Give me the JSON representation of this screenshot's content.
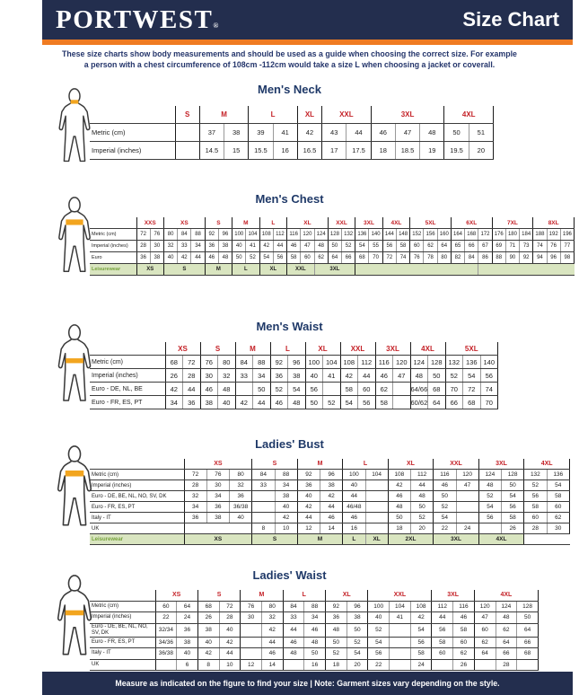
{
  "header": {
    "brand": "PORTWEST",
    "brand_reg": "®",
    "title": "Size Chart"
  },
  "intro": {
    "line1": "These size charts show body measurements and should be used as a guide when choosing the correct size. For example",
    "line2": "a person with a chest circumference of 108cm -112cm would take a size L when choosing a jacket or coverall."
  },
  "footer": {
    "text": "Measure as indicated on the figure to find your size  |  Note: Garment sizes vary depending on the style."
  },
  "colors": {
    "header_navy": "#232e4e",
    "accent_orange": "#ef7b22",
    "size_red": "#c42127",
    "title_navy": "#1f3968",
    "leisure_green_text": "#76a23d",
    "leisure_green_bg": "#d9e5c0",
    "figure_band_orange": "#f2a51f"
  },
  "sections": [
    {
      "id": "mens-neck",
      "title": "Men's Neck",
      "figure": "male",
      "figure_band": "neck",
      "sizes": [
        [
          "S",
          1
        ],
        [
          "M",
          2
        ],
        [
          "L",
          2
        ],
        [
          "XL",
          1
        ],
        [
          "XXL",
          2
        ],
        [
          "3XL",
          3
        ],
        [
          "4XL",
          2
        ]
      ],
      "rows": [
        {
          "label": "Metric (cm)",
          "cells": [
            "",
            "37",
            "38",
            "39",
            "41",
            "42",
            "43",
            "44",
            "46",
            "47",
            "48",
            "50",
            "51"
          ]
        },
        {
          "label": "Imperial (inches)",
          "cells": [
            "",
            "14.5",
            "15",
            "15.5",
            "16",
            "16.5",
            "17",
            "17.5",
            "18",
            "18.5",
            "19",
            "19.5",
            "20"
          ]
        }
      ],
      "leisure": null
    },
    {
      "id": "mens-chest",
      "title": "Men's Chest",
      "figure": "male",
      "figure_band": "chest",
      "sizes": [
        [
          "XXS",
          2
        ],
        [
          "XS",
          3
        ],
        [
          "S",
          2
        ],
        [
          "M",
          2
        ],
        [
          "L",
          2
        ],
        [
          "XL",
          3
        ],
        [
          "XXL",
          2
        ],
        [
          "3XL",
          2
        ],
        [
          "4XL",
          2
        ],
        [
          "5XL",
          3
        ],
        [
          "6XL",
          3
        ],
        [
          "7XL",
          3
        ],
        [
          "8XL",
          3
        ]
      ],
      "rows": [
        {
          "label": "Metric (cm)",
          "cells": [
            "72",
            "76",
            "80",
            "84",
            "88",
            "92",
            "96",
            "100",
            "104",
            "108",
            "112",
            "116",
            "120",
            "124",
            "128",
            "132",
            "136",
            "140",
            "144",
            "148",
            "152",
            "156",
            "160",
            "164",
            "168",
            "172",
            "176",
            "180",
            "184",
            "188",
            "192",
            "196"
          ]
        },
        {
          "label": "Imperial (inches)",
          "cells": [
            "28",
            "30",
            "32",
            "33",
            "34",
            "36",
            "38",
            "40",
            "41",
            "42",
            "44",
            "46",
            "47",
            "48",
            "50",
            "52",
            "54",
            "55",
            "56",
            "58",
            "60",
            "62",
            "64",
            "65",
            "66",
            "67",
            "69",
            "71",
            "73",
            "74",
            "76",
            "77"
          ]
        },
        {
          "label": "Euro",
          "cells": [
            "36",
            "38",
            "40",
            "42",
            "44",
            "46",
            "48",
            "50",
            "52",
            "54",
            "56",
            "58",
            "60",
            "62",
            "64",
            "66",
            "68",
            "70",
            "72",
            "74",
            "76",
            "78",
            "80",
            "82",
            "84",
            "86",
            "88",
            "90",
            "92",
            "94",
            "96",
            "98"
          ]
        }
      ],
      "leisure": {
        "label": "Leisurewear",
        "cells": [
          [
            "XS",
            2
          ],
          [
            "S",
            3
          ],
          [
            "M",
            2
          ],
          [
            "L",
            2
          ],
          [
            "XL",
            2
          ],
          [
            "XXL",
            2
          ],
          [
            "3XL",
            3
          ],
          [
            "",
            9
          ],
          [
            "",
            7
          ]
        ]
      }
    },
    {
      "id": "mens-waist",
      "title": "Men's Waist",
      "figure": "male",
      "figure_band": "waist",
      "sizes": [
        [
          "XS",
          2
        ],
        [
          "S",
          2
        ],
        [
          "M",
          2
        ],
        [
          "L",
          2
        ],
        [
          "XL",
          2
        ],
        [
          "XXL",
          2
        ],
        [
          "3XL",
          2
        ],
        [
          "4XL",
          2
        ],
        [
          "5XL",
          3
        ]
      ],
      "rows": [
        {
          "label": "Metric (cm)",
          "cells": [
            "68",
            "72",
            "76",
            "80",
            "84",
            "88",
            "92",
            "96",
            "100",
            "104",
            "108",
            "112",
            "116",
            "120",
            "124",
            "128",
            "132",
            "136",
            "140"
          ]
        },
        {
          "label": "Imperial (inches)",
          "cells": [
            "26",
            "28",
            "30",
            "32",
            "33",
            "34",
            "36",
            "38",
            "40",
            "41",
            "42",
            "44",
            "46",
            "47",
            "48",
            "50",
            "52",
            "54",
            "56"
          ]
        },
        {
          "label": "Euro - DE, NL, BE",
          "cells": [
            "42",
            "44",
            "46",
            "48",
            "",
            "50",
            "52",
            "54",
            "56",
            "",
            "58",
            "60",
            "62",
            "",
            "64/66",
            "68",
            "70",
            "72",
            "74"
          ]
        },
        {
          "label": "Euro - FR, ES, PT",
          "cells": [
            "34",
            "36",
            "38",
            "40",
            "42",
            "44",
            "46",
            "48",
            "50",
            "52",
            "54",
            "56",
            "58",
            "",
            "60/62",
            "64",
            "66",
            "68",
            "70"
          ]
        }
      ],
      "leisure": null
    },
    {
      "id": "ladies-bust",
      "title": "Ladies' Bust",
      "figure": "female",
      "figure_band": "bust",
      "sizes": [
        [
          "XS",
          3
        ],
        [
          "S",
          2
        ],
        [
          "M",
          2
        ],
        [
          "L",
          2
        ],
        [
          "XL",
          2
        ],
        [
          "XXL",
          2
        ],
        [
          "3XL",
          2
        ],
        [
          "4XL",
          2
        ]
      ],
      "rows": [
        {
          "label": "Metric (cm)",
          "cells": [
            "72",
            "76",
            "80",
            "84",
            "88",
            "92",
            "96",
            "100",
            "104",
            "108",
            "112",
            "116",
            "120",
            "124",
            "128",
            "132",
            "136"
          ]
        },
        {
          "label": "Imperial (inches)",
          "cells": [
            "28",
            "30",
            "32",
            "33",
            "34",
            "36",
            "38",
            "40",
            "",
            "42",
            "44",
            "46",
            "47",
            "48",
            "50",
            "52",
            "54"
          ]
        },
        {
          "label": "Euro - DE, BE, NL, NO, SV, DK",
          "cells": [
            "32",
            "34",
            "36",
            "",
            "38",
            "40",
            "42",
            "44",
            "",
            "46",
            "48",
            "50",
            "",
            "52",
            "54",
            "56",
            "58"
          ]
        },
        {
          "label": "Euro - FR, ES, PT",
          "cells": [
            "34",
            "36",
            "36/38",
            "",
            "40",
            "42",
            "44",
            "46/48",
            "",
            "48",
            "50",
            "52",
            "",
            "54",
            "56",
            "58",
            "60"
          ]
        },
        {
          "label": "Italy - IT",
          "cells": [
            "36",
            "38",
            "40",
            "",
            "42",
            "44",
            "46",
            "46",
            "",
            "50",
            "52",
            "54",
            "",
            "56",
            "58",
            "60",
            "62"
          ]
        },
        {
          "label": "UK",
          "cells": [
            [
              "",
              3
            ],
            "8",
            "10",
            "12",
            "14",
            "16",
            "",
            "18",
            "20",
            "22",
            "24",
            "",
            "26",
            "28",
            "30"
          ]
        }
      ],
      "leisure": {
        "label": "Leisurewear",
        "cells": [
          [
            "XS",
            3
          ],
          [
            "S",
            2
          ],
          [
            "M",
            2
          ],
          [
            "L",
            1
          ],
          [
            "XL",
            1
          ],
          [
            "2XL",
            2
          ],
          [
            "3XL",
            2
          ],
          [
            "4XL",
            2
          ],
          [
            "",
            2,
            "plain"
          ]
        ]
      }
    },
    {
      "id": "ladies-waist",
      "title": "Ladies' Waist",
      "figure": "female",
      "figure_band": "waist",
      "sizes": [
        [
          "XS",
          2
        ],
        [
          "S",
          2
        ],
        [
          "M",
          2
        ],
        [
          "L",
          2
        ],
        [
          "XL",
          2
        ],
        [
          "XXL",
          3
        ],
        [
          "3XL",
          2
        ],
        [
          "4XL",
          3
        ]
      ],
      "rows": [
        {
          "label": "Metric (cm)",
          "cells": [
            "60",
            "64",
            "68",
            "72",
            "76",
            "80",
            "84",
            "88",
            "92",
            "96",
            "100",
            "104",
            "108",
            "112",
            "116",
            "120",
            "124",
            "128"
          ]
        },
        {
          "label": "Imperial (inches)",
          "cells": [
            "22",
            "24",
            "26",
            "28",
            "30",
            "32",
            "33",
            "34",
            "36",
            "38",
            "40",
            "41",
            "42",
            "44",
            "46",
            "47",
            "48",
            "50"
          ]
        },
        {
          "label": "Euro - DE, BE, NL, NO, SV, DK",
          "cells": [
            "32/34",
            "36",
            "38",
            "40",
            "",
            "42",
            "44",
            "46",
            "48",
            "50",
            "52",
            "",
            "54",
            "56",
            "58",
            "60",
            "62",
            "64"
          ]
        },
        {
          "label": "Euro - FR, ES, PT",
          "cells": [
            "34/36",
            "38",
            "40",
            "42",
            "",
            "44",
            "46",
            "48",
            "50",
            "52",
            "54",
            "",
            "56",
            "58",
            "60",
            "62",
            "64",
            "66"
          ]
        },
        {
          "label": "Italy - IT",
          "cells": [
            "36/38",
            "40",
            "42",
            "44",
            "",
            "46",
            "48",
            "50",
            "52",
            "54",
            "56",
            "",
            "58",
            "60",
            "62",
            "64",
            "66",
            "68"
          ]
        },
        {
          "label": "UK",
          "cells": [
            "",
            "6",
            "8",
            "10",
            "12",
            "14",
            "",
            "16",
            "18",
            "20",
            "22",
            "",
            "24",
            "",
            "26",
            "",
            "28",
            ""
          ]
        }
      ],
      "leisure": null
    }
  ]
}
